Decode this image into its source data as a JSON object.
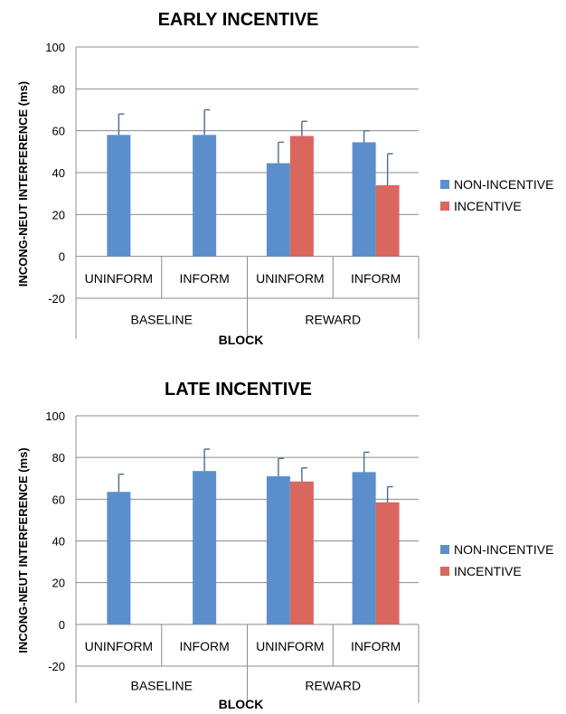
{
  "chart_data": [
    {
      "type": "bar",
      "title": "EARLY INCENTIVE",
      "ylabel": "INCONG-NEUT INTERFERENCE (ms)",
      "xlabel": "BLOCK",
      "ylim": [
        -20,
        100
      ],
      "yticks": [
        100,
        80,
        60,
        40,
        20,
        0,
        -20
      ],
      "categories": [
        "UNINFORM",
        "INFORM",
        "UNINFORM",
        "INFORM"
      ],
      "groups": [
        {
          "label": "BASELINE",
          "span": [
            0,
            1
          ]
        },
        {
          "label": "REWARD",
          "span": [
            2,
            3
          ]
        }
      ],
      "series": [
        {
          "name": "NON-INCENTIVE",
          "color": "#5b8fcb",
          "values": [
            58,
            58,
            44.5,
            54.5
          ],
          "error_upper": [
            68,
            70,
            54.5,
            60
          ]
        },
        {
          "name": "INCENTIVE",
          "color": "#d9675e",
          "values": [
            null,
            null,
            57.5,
            34
          ],
          "error_upper": [
            null,
            null,
            64.5,
            49
          ]
        }
      ],
      "grid": true,
      "legend_position": "right"
    },
    {
      "type": "bar",
      "title": "LATE INCENTIVE",
      "ylabel": "INCONG-NEUT INTERFERENCE (ms)",
      "xlabel": "BLOCK",
      "ylim": [
        -20,
        100
      ],
      "yticks": [
        100,
        80,
        60,
        40,
        20,
        0,
        -20
      ],
      "categories": [
        "UNINFORM",
        "INFORM",
        "UNINFORM",
        "INFORM"
      ],
      "groups": [
        {
          "label": "BASELINE",
          "span": [
            0,
            1
          ]
        },
        {
          "label": "REWARD",
          "span": [
            2,
            3
          ]
        }
      ],
      "series": [
        {
          "name": "NON-INCENTIVE",
          "color": "#5b8fcb",
          "values": [
            63.5,
            73.5,
            71,
            73
          ],
          "error_upper": [
            72,
            84,
            79.5,
            82.5
          ]
        },
        {
          "name": "INCENTIVE",
          "color": "#d9675e",
          "values": [
            null,
            null,
            68.5,
            58.5
          ],
          "error_upper": [
            null,
            null,
            75,
            66
          ]
        }
      ],
      "grid": true,
      "legend_position": "right"
    }
  ]
}
